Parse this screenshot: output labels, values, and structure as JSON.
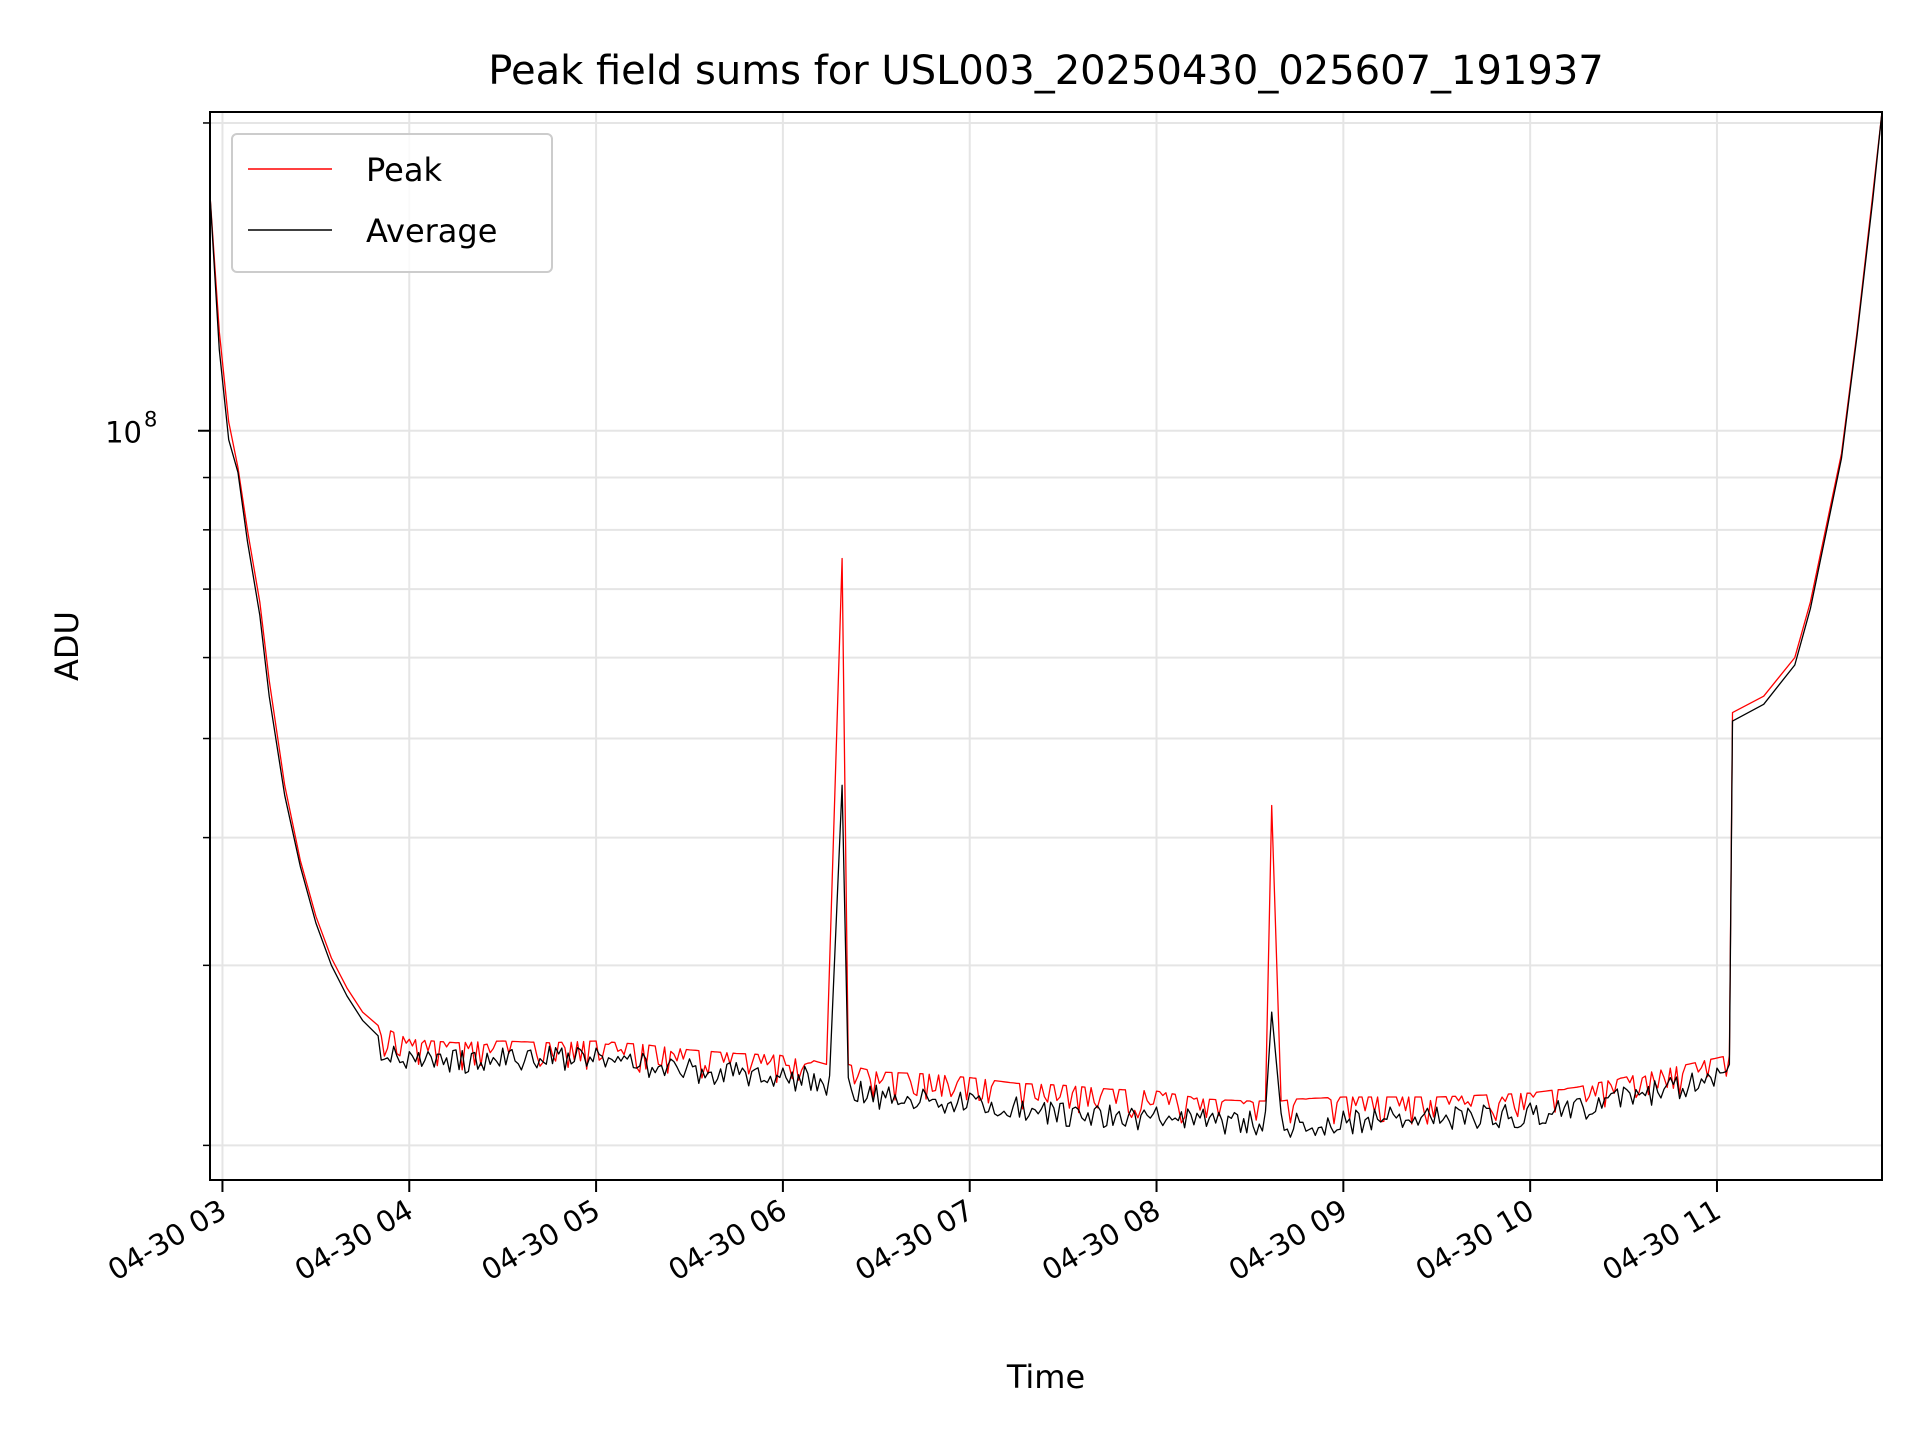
{
  "chart_data": {
    "type": "line",
    "title": "Peak field sums for USL003_20250430_025607_191937",
    "xlabel": "Time",
    "ylabel": "ADU",
    "y_scale": "log",
    "ylim": [
      18500000,
      205000000
    ],
    "xlim": [
      "04-30 02:56",
      "04-30 11:53"
    ],
    "grid": true,
    "legend_position": "top-left",
    "x_ticks": [
      "04-30 03",
      "04-30 04",
      "04-30 05",
      "04-30 06",
      "04-30 07",
      "04-30 08",
      "04-30 09",
      "04-30 10",
      "04-30 11"
    ],
    "y_ticks": [
      {
        "label_base": "10",
        "label_exp": "8",
        "value": 100000000
      }
    ],
    "x_unit": "time (04-30 HH:MM)",
    "series": [
      {
        "name": "Peak",
        "color": "#ff0000",
        "x": [
          "02:56",
          "02:59",
          "03:02",
          "03:05",
          "03:08",
          "03:12",
          "03:15",
          "03:20",
          "03:25",
          "03:30",
          "03:35",
          "03:40",
          "03:45",
          "03:50",
          "03:55",
          "04:00",
          "04:15",
          "04:30",
          "04:45",
          "05:00",
          "05:15",
          "05:30",
          "05:45",
          "05:59",
          "06:04",
          "06:07",
          "06:10",
          "06:14",
          "06:19",
          "06:21",
          "06:25",
          "06:30",
          "06:45",
          "07:00",
          "07:15",
          "07:30",
          "07:45",
          "08:00",
          "08:15",
          "08:30",
          "08:35",
          "08:37",
          "08:40",
          "08:45",
          "09:00",
          "09:15",
          "09:30",
          "09:45",
          "10:00",
          "10:15",
          "10:30",
          "10:45",
          "11:04",
          "11:05",
          "11:15",
          "11:25",
          "11:30",
          "11:40",
          "11:45",
          "11:50",
          "11:53"
        ],
        "values": [
          170000000,
          125000000,
          102000000,
          92000000,
          80000000,
          68000000,
          57000000,
          45000000,
          38000000,
          33500000,
          30500000,
          28500000,
          27000000,
          26200000,
          25800000,
          25400000,
          25200000,
          25300000,
          25200000,
          25300000,
          25100000,
          24800000,
          24600000,
          24500000,
          24300000,
          24000000,
          24200000,
          24000000,
          75000000,
          24000000,
          23800000,
          23600000,
          23500000,
          23300000,
          23000000,
          22900000,
          22700000,
          22600000,
          22200000,
          22100000,
          22100000,
          43000000,
          22100000,
          22200000,
          22300000,
          22300000,
          22300000,
          22400000,
          22500000,
          22800000,
          23300000,
          23800000,
          24500000,
          53000000,
          55000000,
          60000000,
          68000000,
          95000000,
          125000000,
          170000000,
          205000000
        ]
      },
      {
        "name": "Average",
        "color": "#000000",
        "x": [
          "02:56",
          "02:59",
          "03:02",
          "03:05",
          "03:08",
          "03:12",
          "03:15",
          "03:20",
          "03:25",
          "03:30",
          "03:35",
          "03:40",
          "03:45",
          "03:50",
          "03:55",
          "04:00",
          "04:15",
          "04:30",
          "04:45",
          "05:00",
          "05:15",
          "05:30",
          "05:45",
          "06:00",
          "06:07",
          "06:10",
          "06:15",
          "06:19",
          "06:21",
          "06:25",
          "06:30",
          "06:45",
          "07:00",
          "07:15",
          "07:30",
          "07:45",
          "08:00",
          "08:15",
          "08:30",
          "08:35",
          "08:37",
          "08:40",
          "08:45",
          "09:00",
          "09:15",
          "09:30",
          "09:45",
          "10:00",
          "10:15",
          "10:30",
          "10:45",
          "11:04",
          "11:05",
          "11:15",
          "11:25",
          "11:30",
          "11:40",
          "11:45",
          "11:50",
          "11:53"
        ],
        "values": [
          170000000,
          120000000,
          98000000,
          91000000,
          78000000,
          66000000,
          55000000,
          44000000,
          37500000,
          33000000,
          30000000,
          28000000,
          26500000,
          25600000,
          25000000,
          24700000,
          24800000,
          24900000,
          25000000,
          24900000,
          24600000,
          24300000,
          24100000,
          23800000,
          23900000,
          23500000,
          23400000,
          45000000,
          23300000,
          23100000,
          22900000,
          22700000,
          22500000,
          22300000,
          22000000,
          21900000,
          21800000,
          21700000,
          21600000,
          21600000,
          27000000,
          21500000,
          21500000,
          21600000,
          21800000,
          21800000,
          21900000,
          22000000,
          22200000,
          22800000,
          23300000,
          24000000,
          52000000,
          54000000,
          59000000,
          67000000,
          94000000,
          124000000,
          168000000,
          205000000
        ]
      }
    ]
  }
}
